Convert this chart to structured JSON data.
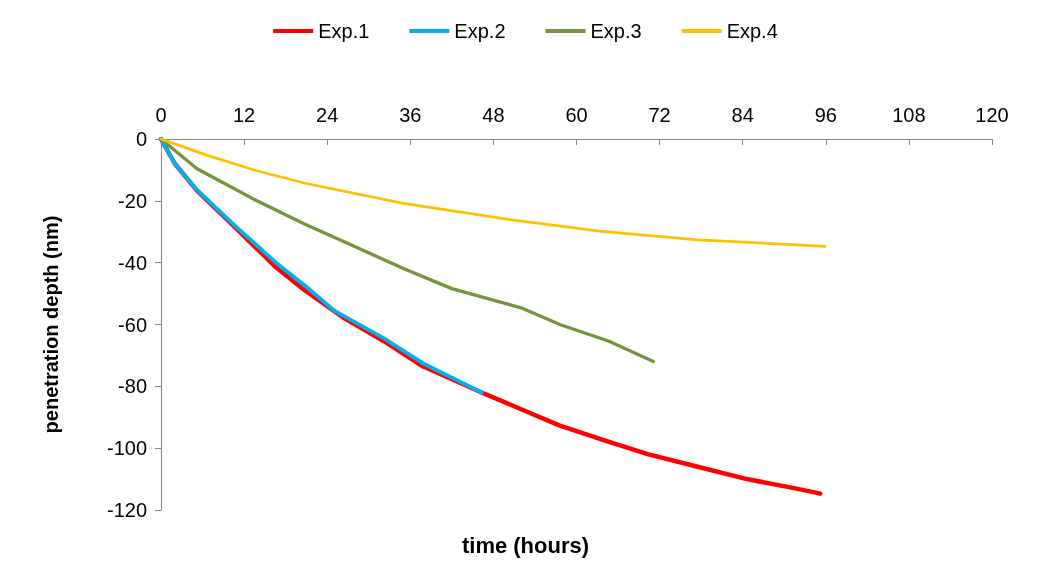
{
  "chart_data": {
    "type": "line",
    "xlabel": "time (hours)",
    "ylabel": "penetration depth (nm)",
    "xlim": [
      0,
      120
    ],
    "xticks": [
      0,
      12,
      24,
      36,
      48,
      60,
      72,
      84,
      96,
      108,
      120
    ],
    "ylim": [
      -120,
      0
    ],
    "yticks": [
      -120,
      -100,
      -80,
      -60,
      -40,
      -20,
      0
    ],
    "grid": false,
    "legend": "top",
    "marker": "none",
    "line_style": "solid",
    "series": [
      {
        "name": "Exp.1",
        "color": "#ff0000",
        "x": [
          0,
          2,
          5.2,
          10.9,
          16.6,
          20.8,
          26.5,
          32.2,
          37.8,
          46.3,
          52,
          57.6,
          64.7,
          70.4,
          77.5,
          84.6,
          91.6,
          95.2
        ],
        "values": [
          0,
          -8,
          -16.7,
          -29,
          -41.5,
          -49,
          -58,
          -65.4,
          -73.5,
          -82,
          -87.4,
          -92.7,
          -98,
          -102,
          -106,
          -110,
          -113,
          -114.7
        ]
      },
      {
        "name": "Exp.2",
        "color": "#00b0f0",
        "x": [
          0,
          2,
          5.2,
          10.9,
          16.6,
          20.8,
          25,
          32.2,
          37.8,
          46.3
        ],
        "values": [
          0,
          -8,
          -16.5,
          -28.5,
          -40,
          -47.5,
          -55.5,
          -64.5,
          -72.5,
          -82
        ]
      },
      {
        "name": "Exp.3",
        "color": "#77933c",
        "x": [
          0,
          5.2,
          13.7,
          20.8,
          27.9,
          35,
          42,
          52,
          57.6,
          64.7,
          71.1
        ],
        "values": [
          0,
          -9.6,
          -19.8,
          -27.6,
          -34.7,
          -41.9,
          -48.4,
          -54.6,
          -60,
          -65.4,
          -72
        ]
      },
      {
        "name": "Exp.4",
        "color": "#ffc000",
        "x": [
          0,
          6.7,
          13.7,
          20.8,
          35,
          49.2,
          63.3,
          77.5,
          95.9
        ],
        "values": [
          0,
          -5.3,
          -10.2,
          -14.3,
          -20.8,
          -25.7,
          -29.8,
          -32.6,
          -34.7
        ]
      }
    ]
  }
}
